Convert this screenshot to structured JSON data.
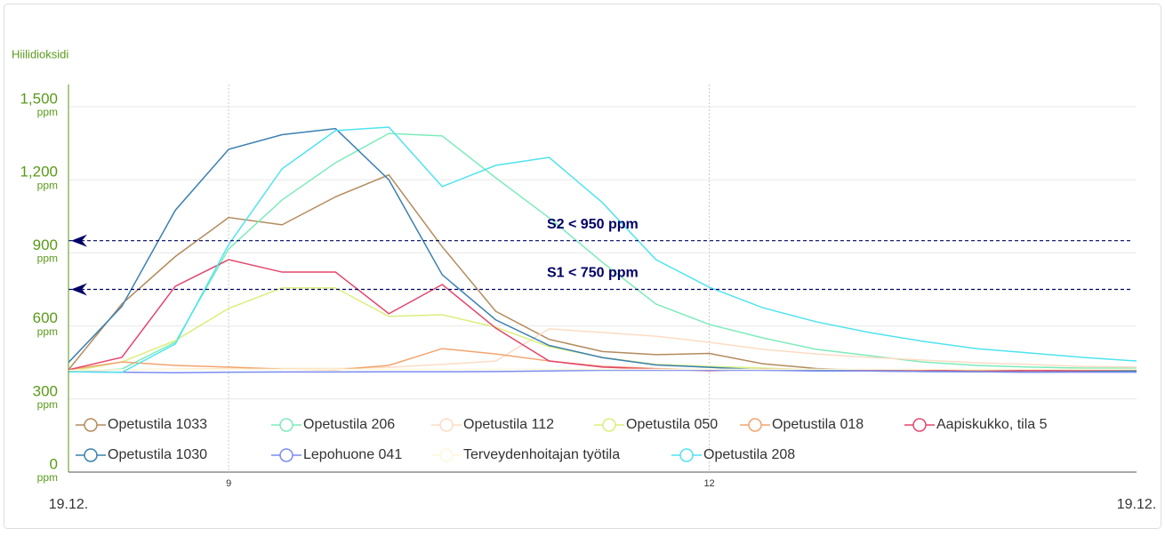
{
  "chart_data": {
    "type": "line",
    "title": "Hiilidioksidi",
    "y_unit": "ppm",
    "x_end_labels": [
      "19.12.",
      "19.12."
    ],
    "x": [
      8,
      8.333,
      8.667,
      9,
      9.333,
      9.667,
      10,
      10.333,
      10.667,
      11,
      11.333,
      11.667,
      12,
      12.333,
      12.667,
      13,
      13.333,
      13.667,
      14,
      14.333,
      14.667
    ],
    "xlim": [
      8,
      14.667
    ],
    "xticks": [
      9,
      12
    ],
    "ylim": [
      0,
      1500
    ],
    "yticks": [
      0,
      300,
      600,
      900,
      {
        "value": 1200,
        "label": "1,200"
      },
      {
        "value": 1500,
        "label": "1,500"
      }
    ],
    "grid": true,
    "thresholds": [
      {
        "label": "S2 < 950 ppm",
        "value": 950
      },
      {
        "label": "S1 < 750 ppm",
        "value": 750
      }
    ],
    "series": [
      {
        "name": "Opetustila 1033",
        "color": "#b38b5d",
        "values": [
          420,
          690,
          885,
          1045,
          1015,
          1130,
          1220,
          925,
          660,
          545,
          495,
          482,
          487,
          445,
          425,
          418,
          415,
          415,
          412,
          412,
          412
        ]
      },
      {
        "name": "Opetustila 206",
        "color": "#7debbb",
        "values": [
          412,
          423,
          533,
          916,
          1117,
          1270,
          1390,
          1380,
          1208,
          1044,
          861,
          690,
          606,
          551,
          504,
          478,
          452,
          438,
          431,
          427,
          427
        ]
      },
      {
        "name": "Opetustila 112",
        "color": "#fddcc4",
        "values": [
          412,
          420,
          423,
          425,
          425,
          425,
          430,
          442,
          456,
          588,
          573,
          558,
          533,
          504,
          485,
          471,
          460,
          449,
          442,
          434,
          431
        ]
      },
      {
        "name": "Opetustila 050",
        "color": "#d9ef7b",
        "values": [
          412,
          452,
          540,
          672,
          756,
          756,
          639,
          646,
          595,
          515,
          471,
          442,
          434,
          427,
          420,
          420,
          420,
          418,
          418,
          418,
          418
        ]
      },
      {
        "name": "Opetustila 018",
        "color": "#f2a46f",
        "values": [
          420,
          452,
          438,
          431,
          423,
          420,
          438,
          507,
          485,
          456,
          434,
          425,
          420,
          420,
          420,
          418,
          418,
          418,
          418,
          418,
          418
        ]
      },
      {
        "name": "Aapiskukko, tila 5",
        "color": "#e2466c",
        "values": [
          420,
          471,
          763,
          872,
          821,
          821,
          650,
          770,
          591,
          456,
          431,
          423,
          416,
          423,
          420,
          420,
          420,
          412,
          418,
          415,
          415
        ]
      },
      {
        "name": "Opetustila 1030",
        "color": "#3b80b1",
        "values": [
          450,
          680,
          1075,
          1325,
          1385,
          1410,
          1200,
          810,
          625,
          520,
          470,
          440,
          430,
          420,
          418,
          415,
          413,
          412,
          410,
          412,
          415
        ]
      },
      {
        "name": "Lepohuone 041",
        "color": "#7b8cf0",
        "values": [
          412,
          410,
          408,
          410,
          411,
          411,
          412,
          412,
          413,
          415,
          418,
          418,
          418,
          418,
          415,
          415,
          413,
          412,
          410,
          410,
          410
        ]
      },
      {
        "name": "Terveydenhoitajan työtila",
        "color": "#fdf8dc",
        "values": [
          418,
          420,
          422,
          422,
          422,
          422,
          422,
          422,
          422,
          422,
          422,
          422,
          422,
          422,
          422,
          422,
          422,
          422,
          422,
          422,
          422
        ]
      },
      {
        "name": "Opetustila 208",
        "color": "#4fe3f0",
        "values": [
          412,
          409,
          526,
          934,
          1245,
          1402,
          1416,
          1172,
          1259,
          1292,
          1106,
          872,
          759,
          675,
          617,
          573,
          537,
          507,
          489,
          471,
          456
        ]
      }
    ]
  }
}
